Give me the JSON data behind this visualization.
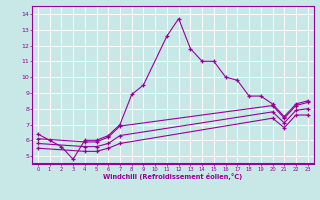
{
  "title": "",
  "xlabel": "Windchill (Refroidissement éolien,°C)",
  "background_color": "#c8e8e8",
  "grid_color": "#ffffff",
  "line_color": "#990099",
  "xlim": [
    -0.5,
    23.5
  ],
  "ylim": [
    4.5,
    14.5
  ],
  "xticks": [
    0,
    1,
    2,
    3,
    4,
    5,
    6,
    7,
    8,
    9,
    10,
    11,
    12,
    13,
    14,
    15,
    16,
    17,
    18,
    19,
    20,
    21,
    22,
    23
  ],
  "yticks": [
    5,
    6,
    7,
    8,
    9,
    10,
    11,
    12,
    13,
    14
  ],
  "series": [
    {
      "x": [
        0,
        1,
        2,
        3,
        4,
        5,
        6,
        7,
        8,
        9,
        11,
        12,
        13,
        14,
        15,
        16,
        17,
        18,
        19,
        20,
        21,
        22,
        23
      ],
      "y": [
        6.4,
        6.0,
        5.6,
        4.8,
        6.0,
        6.0,
        6.3,
        7.0,
        8.9,
        9.5,
        12.6,
        13.7,
        11.8,
        11.0,
        11.0,
        10.0,
        9.8,
        8.8,
        8.8,
        8.3,
        7.5,
        8.3,
        8.5
      ]
    },
    {
      "x": [
        0,
        4,
        5,
        6,
        7,
        20,
        21,
        22,
        23
      ],
      "y": [
        6.1,
        5.9,
        5.9,
        6.2,
        6.9,
        8.2,
        7.4,
        8.2,
        8.4
      ]
    },
    {
      "x": [
        0,
        4,
        5,
        6,
        7,
        20,
        21,
        22,
        23
      ],
      "y": [
        5.8,
        5.6,
        5.6,
        5.8,
        6.3,
        7.8,
        7.1,
        7.9,
        8.0
      ]
    },
    {
      "x": [
        0,
        4,
        5,
        6,
        7,
        20,
        21,
        22,
        23
      ],
      "y": [
        5.5,
        5.3,
        5.3,
        5.5,
        5.8,
        7.4,
        6.8,
        7.6,
        7.6
      ]
    }
  ]
}
